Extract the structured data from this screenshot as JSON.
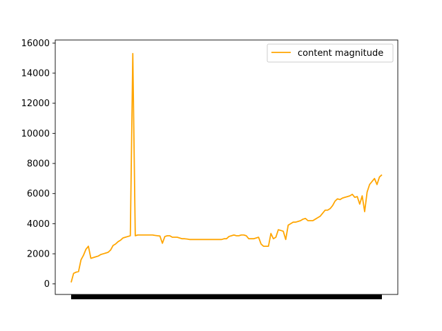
{
  "chart_data": {
    "type": "line",
    "title": "",
    "xlabel": "",
    "ylabel": "",
    "ylim": [
      -700,
      16200
    ],
    "yticks": [
      0,
      2000,
      4000,
      6000,
      8000,
      10000,
      12000,
      14000,
      16000
    ],
    "grid": false,
    "legend_position": "upper right",
    "x_tick_labels_note": "dense unreadable x tick labels rendered as a solid black band",
    "series": [
      {
        "name": "content magnitude",
        "color": "#ffa500",
        "values": [
          100,
          700,
          780,
          820,
          1600,
          1900,
          2300,
          2500,
          1700,
          1750,
          1800,
          1850,
          1950,
          2000,
          2050,
          2100,
          2250,
          2550,
          2650,
          2800,
          2900,
          3050,
          3100,
          3150,
          3200,
          15300,
          3200,
          3250,
          3250,
          3250,
          3250,
          3250,
          3250,
          3250,
          3220,
          3200,
          3180,
          2700,
          3150,
          3200,
          3200,
          3100,
          3100,
          3100,
          3050,
          3000,
          3000,
          2980,
          2950,
          2950,
          2950,
          2950,
          2950,
          2950,
          2950,
          2950,
          2950,
          2950,
          2950,
          2950,
          2950,
          2950,
          3000,
          3000,
          3150,
          3200,
          3250,
          3200,
          3200,
          3250,
          3250,
          3200,
          3000,
          3000,
          3000,
          3050,
          3100,
          2650,
          2500,
          2500,
          2500,
          3350,
          3000,
          3100,
          3600,
          3550,
          3500,
          2950,
          3900,
          4000,
          4100,
          4100,
          4150,
          4200,
          4300,
          4350,
          4200,
          4200,
          4200,
          4300,
          4400,
          4500,
          4700,
          4900,
          4900,
          5000,
          5200,
          5500,
          5650,
          5600,
          5700,
          5750,
          5800,
          5850,
          5950,
          5750,
          5800,
          5300,
          5850,
          4800,
          6100,
          6600,
          6800,
          7000,
          6600,
          7100,
          7250
        ]
      }
    ]
  }
}
